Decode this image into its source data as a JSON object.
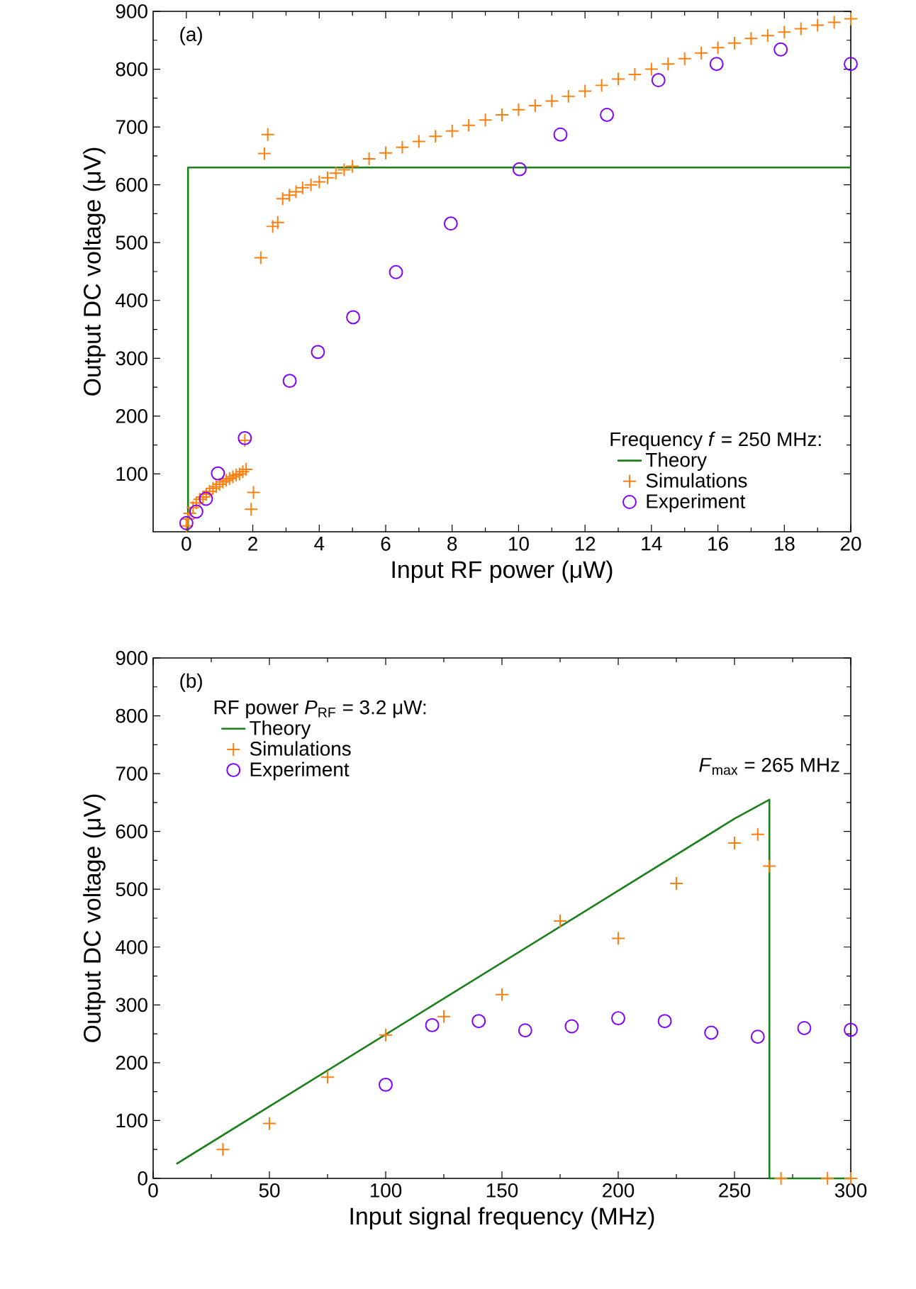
{
  "chart_data": [
    {
      "type": "line",
      "xlabel": "Input RF power (μW)",
      "ylabel": "Output DC voltage (μV)",
      "legend_title": "Frequency *f* = 250 MHz:",
      "annotations": [
        "(a)"
      ],
      "xlim": [
        -1,
        20
      ],
      "ylim": [
        0,
        900
      ],
      "xticks": [
        0,
        2,
        4,
        6,
        8,
        10,
        12,
        14,
        16,
        18,
        20
      ],
      "yticks": [
        100,
        200,
        300,
        400,
        500,
        600,
        700,
        800,
        900
      ],
      "grid": false,
      "legend": "bottom right",
      "series": [
        {
          "name": "Theory",
          "type": "line",
          "color": "#1a801a",
          "marker": "none",
          "line_style": "solid",
          "x": [
            0.05,
            0.05,
            20
          ],
          "values": [
            0,
            630,
            630
          ]
        },
        {
          "name": "Simulations",
          "type": "scatter",
          "color": "#ff7f0e",
          "marker": "cross",
          "x": [
            0,
            0.05,
            0.1,
            0.2,
            0.3,
            0.4,
            0.5,
            0.6,
            0.7,
            0.8,
            0.9,
            1.0,
            1.1,
            1.2,
            1.3,
            1.4,
            1.5,
            1.6,
            1.7,
            1.8,
            1.76,
            1.95,
            2.02,
            2.24,
            2.35,
            2.45,
            2.6,
            2.75,
            2.9,
            3.1,
            3.3,
            3.5,
            3.75,
            4,
            4.25,
            4.5,
            4.75,
            5,
            5.5,
            6,
            6.5,
            7,
            7.5,
            8,
            8.5,
            9,
            9.5,
            10,
            10.5,
            11,
            11.5,
            12,
            12.5,
            13,
            13.5,
            14,
            14.5,
            15,
            15.5,
            16,
            16.5,
            17,
            17.5,
            18,
            18.5,
            19,
            19.5,
            20
          ],
          "values": [
            10,
            22,
            32,
            42,
            50,
            56,
            60,
            65,
            70,
            75,
            78,
            82,
            86,
            89,
            92,
            95,
            98,
            100,
            104,
            108,
            158,
            39,
            68,
            474,
            654,
            687,
            528,
            535,
            576,
            582,
            588,
            595,
            600,
            605,
            612,
            620,
            626,
            632,
            645,
            655,
            665,
            675,
            684,
            693,
            703,
            712,
            721,
            730,
            737,
            745,
            753,
            762,
            772,
            783,
            791,
            800,
            809,
            818,
            828,
            837,
            845,
            853,
            858,
            864,
            870,
            876,
            881,
            887
          ]
        },
        {
          "name": "Experiment",
          "type": "scatter",
          "color": "#8000ff",
          "marker": "circle",
          "x": [
            0,
            0.3,
            0.59,
            0.95,
            1.76,
            3.11,
            3.96,
            5.02,
            6.31,
            7.96,
            10.03,
            11.26,
            12.66,
            14.21,
            15.96,
            17.89,
            20
          ],
          "values": [
            15,
            35,
            57,
            101,
            162,
            261,
            311,
            371,
            449,
            533,
            627,
            687,
            721,
            781,
            809,
            834,
            809
          ]
        }
      ]
    },
    {
      "type": "line",
      "xlabel": "Input signal frequency (MHz)",
      "ylabel": "Output DC voltage (μV)",
      "legend_title": "RF power *P*$_{RF}$ = 3.2 μW:",
      "annotations": [
        "(b)",
        {
          "text": "*F*$_{max}$ = 265 MHz",
          "x": 265,
          "y": 655
        }
      ],
      "xlim": [
        0,
        300
      ],
      "ylim": [
        0,
        900
      ],
      "xticks": [
        0,
        50,
        100,
        150,
        200,
        250,
        300
      ],
      "yticks": [
        0,
        100,
        200,
        300,
        400,
        500,
        600,
        700,
        800,
        900
      ],
      "grid": false,
      "legend": "top left",
      "series": [
        {
          "name": "Theory",
          "type": "line",
          "color": "#1a801a",
          "marker": "none",
          "line_style": "solid",
          "x": [
            10,
            250,
            265,
            265,
            300
          ],
          "values": [
            25,
            622,
            655,
            0,
            0
          ]
        },
        {
          "name": "Simulations",
          "type": "scatter",
          "color": "#ff7f0e",
          "marker": "cross",
          "x": [
            30,
            50,
            75,
            100,
            125,
            150,
            175,
            200,
            225,
            250,
            260,
            265,
            270,
            290,
            300
          ],
          "values": [
            50,
            95,
            175,
            248,
            280,
            318,
            445,
            415,
            510,
            580,
            595,
            540,
            0,
            0,
            0
          ]
        },
        {
          "name": "Experiment",
          "type": "scatter",
          "color": "#8000ff",
          "marker": "circle",
          "x": [
            100,
            120,
            140,
            160,
            180,
            200,
            220,
            240,
            260,
            280,
            300
          ],
          "values": [
            162,
            265,
            272,
            256,
            263,
            277,
            272,
            252,
            245,
            260,
            257
          ]
        }
      ]
    }
  ]
}
